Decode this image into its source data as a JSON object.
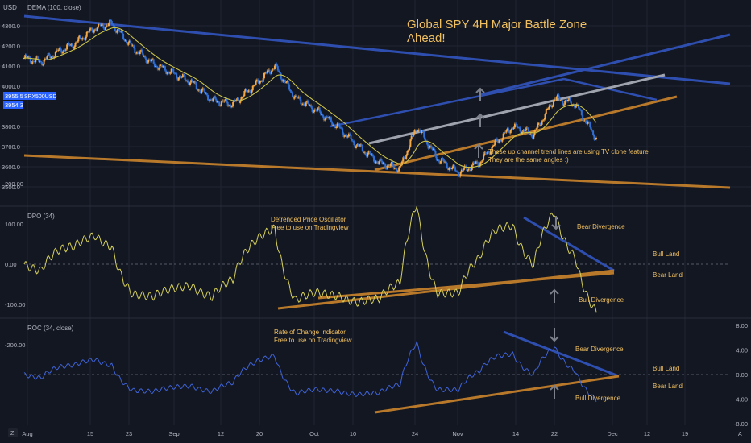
{
  "colors": {
    "background": "#131722",
    "grid": "#1f2433",
    "text": "#b2b5be",
    "candle_up": "#f5a742",
    "candle_down": "#2f6fd6",
    "dema": "#c9c24a",
    "oscillator": "#d6d15a",
    "roc": "#3f63d8",
    "trend_blue": "#2f4fb0",
    "trend_orange": "#b9792b",
    "trend_gray": "#9ea3ad",
    "annotation": "#f0c060",
    "price_badge": "#2962ff",
    "arrow": "#7c808a"
  },
  "top_left": {
    "usd_label": "USD",
    "dema_label": "DEMA (100, close)"
  },
  "price_badges": {
    "symbol": "SPX500USD",
    "last": "3955.5",
    "dema": "3954.3"
  },
  "bottom_bar": {
    "z_label": "Z",
    "a_label": "A"
  },
  "chart_data": [
    {
      "type": "line",
      "panel": "price",
      "title": "Global SPY 4H Major Battle Zone Ahead!",
      "indicator": "DEMA (100, close)",
      "yticks": [
        3500,
        3600,
        3700,
        3800,
        4000,
        4100,
        4200,
        4300
      ],
      "ytick_labels": [
        "3500.0",
        "3600.0",
        "3700.0",
        "3800.0",
        "4000.0",
        "4100.0",
        "4200.0",
        "4300.0"
      ],
      "ylim": [
        3450,
        4350
      ],
      "x_dates": [
        "Aug",
        "15",
        "23",
        "Sep",
        "12",
        "20",
        "Oct",
        "10",
        "24",
        "Nov",
        "14",
        "22",
        "Dec",
        "12",
        "19"
      ],
      "price_x": [
        0,
        4,
        8,
        12,
        17,
        21,
        26,
        31,
        36,
        40,
        45,
        50,
        55,
        60,
        65,
        70,
        75,
        80,
        85,
        90,
        94,
        99,
        104,
        109,
        113,
        117,
        122,
        127,
        132,
        137
      ],
      "price": [
        4140,
        4120,
        4170,
        4210,
        4290,
        4310,
        4190,
        4110,
        4060,
        4020,
        3930,
        3910,
        4000,
        4100,
        3940,
        3880,
        3800,
        3700,
        3620,
        3590,
        3800,
        3640,
        3570,
        3620,
        3720,
        3800,
        3760,
        3940,
        3910,
        3740
      ],
      "price_badge_value": 3955.5,
      "dema_badge_value": 3954.3,
      "annotations": [
        "These up channel trend lines are using TV clone feature",
        "They are the same angles :)"
      ]
    },
    {
      "type": "line",
      "panel": "oscillator",
      "title": "DPO (34)",
      "subtitle": "Detrended Price Oscillator",
      "note": "Free to use on Tradingview",
      "yticks": [
        -200,
        -100,
        0,
        100,
        200
      ],
      "ytick_labels": [
        "-200.00",
        "-100.00",
        "0.00",
        "100.00",
        "200.00"
      ],
      "ylim": [
        -260,
        260
      ],
      "labels": [
        "Bear Divergence",
        "Bull Land",
        "Bear Land",
        "Bull Divergence"
      ]
    },
    {
      "type": "line",
      "panel": "roc",
      "title": "ROC (34, close)",
      "subtitle": "Rate of Change Indicator",
      "note": "Free to use on Tradingview",
      "yticks": [
        -8,
        -4,
        0,
        4,
        8
      ],
      "ytick_labels": [
        "-8.00",
        "-4.00",
        "0.00",
        "4.00",
        "8.00"
      ],
      "ylim": [
        -8,
        8
      ],
      "labels": [
        "Bear Divergence",
        "Bull Land",
        "Bear Land",
        "Bull Divergence"
      ]
    }
  ]
}
